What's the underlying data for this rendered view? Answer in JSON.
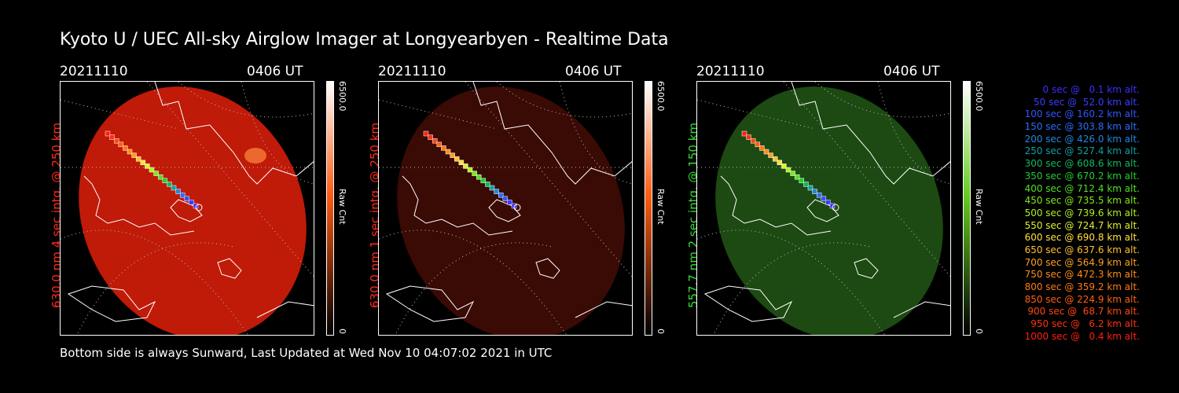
{
  "title": "Kyoto U / UEC All-sky Airglow Imager at Longyearbyen - Realtime Data",
  "footer": "Bottom side is always Sunward, Last Updated at Wed Nov 10 04:07:02 2021 in UTC",
  "panels": [
    {
      "date": "20211110",
      "time": "0406 UT",
      "ylabel": "630.0 nm  4 sec intg. @ 250 km",
      "label_color": "#ff2a1a",
      "fill": "#c01a08",
      "fill_opacity": 1.0,
      "cbar_top": "6500.0",
      "cbar_mid": "Raw Cnt",
      "cbar_bot": "0",
      "cbar_color": "#ff5a10"
    },
    {
      "date": "20211110",
      "time": "0406 UT",
      "ylabel": "630.0 nm  1 sec intg. @ 250 km",
      "label_color": "#ff2a1a",
      "fill": "#3a0a04",
      "fill_opacity": 1.0,
      "cbar_top": "6500.0",
      "cbar_mid": "Raw Cnt",
      "cbar_bot": "0",
      "cbar_color": "#ff5a10"
    },
    {
      "date": "20211110",
      "time": "0406 UT",
      "ylabel": "557.7 nm  2 sec intg. @ 150 km",
      "label_color": "#33dd33",
      "fill": "#1c4a12",
      "fill_opacity": 1.0,
      "cbar_top": "6500.0",
      "cbar_mid": "Raw Cnt",
      "cbar_bot": "0",
      "cbar_color": "#66cc22"
    }
  ],
  "legend": [
    {
      "text": "0 sec @   0.1 km alt.",
      "color": "#3a2dff"
    },
    {
      "text": "50 sec @  52.0 km alt.",
      "color": "#3a3dff"
    },
    {
      "text": "100 sec @ 160.2 km alt.",
      "color": "#3355ff"
    },
    {
      "text": "150 sec @ 303.8 km alt.",
      "color": "#2a6cff"
    },
    {
      "text": "200 sec @ 426.0 km alt.",
      "color": "#1f88e0"
    },
    {
      "text": "250 sec @ 527.4 km alt.",
      "color": "#10a0a0"
    },
    {
      "text": "300 sec @ 608.6 km alt.",
      "color": "#10b860"
    },
    {
      "text": "350 sec @ 670.2 km alt.",
      "color": "#20d030"
    },
    {
      "text": "400 sec @ 712.4 km alt.",
      "color": "#50e020"
    },
    {
      "text": "450 sec @ 735.5 km alt.",
      "color": "#80e818"
    },
    {
      "text": "500 sec @ 739.6 km alt.",
      "color": "#b0f020"
    },
    {
      "text": "550 sec @ 724.7 km alt.",
      "color": "#e0f030"
    },
    {
      "text": "600 sec @ 690.8 km alt.",
      "color": "#ffe040"
    },
    {
      "text": "650 sec @ 637.6 km alt.",
      "color": "#ffc030"
    },
    {
      "text": "700 sec @ 564.9 km alt.",
      "color": "#ffa020"
    },
    {
      "text": "750 sec @ 472.3 km alt.",
      "color": "#ff8c18"
    },
    {
      "text": "800 sec @ 359.2 km alt.",
      "color": "#ff7814"
    },
    {
      "text": "850 sec @ 224.9 km alt.",
      "color": "#ff6010"
    },
    {
      "text": "900 sec @  68.7 km alt.",
      "color": "#ff4810"
    },
    {
      "text": "950 sec @   6.2 km alt.",
      "color": "#ff3010"
    },
    {
      "text": "1000 sec @   0.4 km alt.",
      "color": "#ff2010"
    }
  ]
}
